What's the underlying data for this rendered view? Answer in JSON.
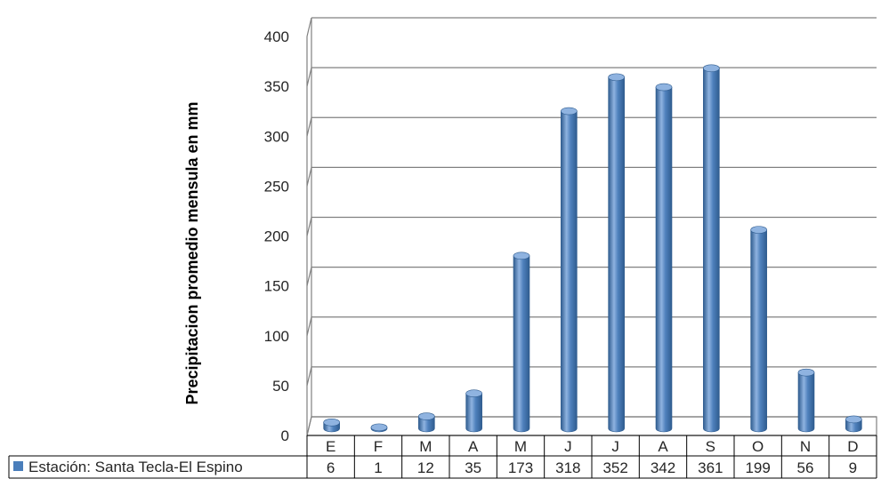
{
  "chart_data": {
    "type": "bar",
    "ylabel": "Precipitacion promedio mensula en mm",
    "categories": [
      "E",
      "F",
      "M",
      "A",
      "M",
      "J",
      "J",
      "A",
      "S",
      "O",
      "N",
      "D"
    ],
    "series": [
      {
        "name": "Estación: Santa Tecla-El Espino",
        "values": [
          6,
          1,
          12,
          35,
          173,
          318,
          352,
          342,
          361,
          199,
          56,
          9
        ]
      }
    ],
    "ylim": [
      0,
      400
    ],
    "yticks": [
      "0",
      "50",
      "100",
      "150",
      "200",
      "250",
      "300",
      "350",
      "400"
    ],
    "grid": true,
    "legend": "data-table-left",
    "data_table": true,
    "colors": {
      "bar": "#4f81bd",
      "bar_dark": "#2f5c8f",
      "bar_light": "#8fb3e0",
      "grid": "#808080",
      "legend_key": "#4a7ebb"
    }
  }
}
